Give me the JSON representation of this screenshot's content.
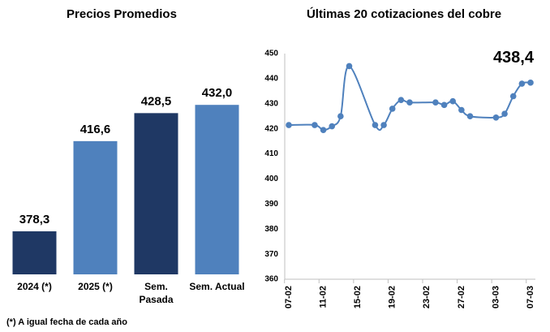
{
  "chart_data": [
    {
      "type": "bar",
      "title": "Precios Promedios",
      "categories": [
        "2024 (*)",
        "2025 (*)",
        "Sem. Pasada",
        "Sem. Actual"
      ],
      "values": [
        378.3,
        416.6,
        428.5,
        432.0
      ],
      "value_labels": [
        "378,3",
        "416,6",
        "428,5",
        "432,0"
      ],
      "colors": [
        "#1f3864",
        "#4f81bd",
        "#1f3864",
        "#4f81bd"
      ],
      "ylim": [
        360,
        460
      ],
      "note": "(*) A igual fecha de cada año"
    },
    {
      "type": "line",
      "title": "Últimas 20 cotizaciones del cobre",
      "x": [
        "07-02",
        "10-02",
        "11-02",
        "12-02",
        "13-02",
        "14-02",
        "17-02",
        "18-02",
        "19-02",
        "20-02",
        "21-02",
        "24-02",
        "25-02",
        "26-02",
        "27-02",
        "28-02",
        "03-03",
        "04-03",
        "05-03",
        "06-03",
        "07-03"
      ],
      "series": [
        {
          "color": "#4f81bd",
          "values": [
            421.5,
            421.5,
            419.5,
            421,
            425,
            445,
            421.5,
            421.5,
            428,
            431.5,
            430.5,
            430.5,
            429.5,
            431,
            427.5,
            425,
            424.5,
            426,
            433,
            438,
            438.4
          ],
          "value_labels": [
            null,
            null,
            null,
            null,
            null,
            null,
            null,
            null,
            null,
            null,
            null,
            null,
            null,
            null,
            null,
            null,
            null,
            null,
            null,
            null,
            "438,4"
          ]
        }
      ],
      "xlim": [
        "07-02",
        "07-03"
      ],
      "xticks": [
        "07-02",
        "11-02",
        "15-02",
        "19-02",
        "23-02",
        "27-02",
        "03-03",
        "07-03"
      ],
      "ylim": [
        360,
        450
      ],
      "yticks": [
        360,
        370,
        380,
        390,
        400,
        410,
        420,
        430,
        440,
        450
      ]
    }
  ]
}
